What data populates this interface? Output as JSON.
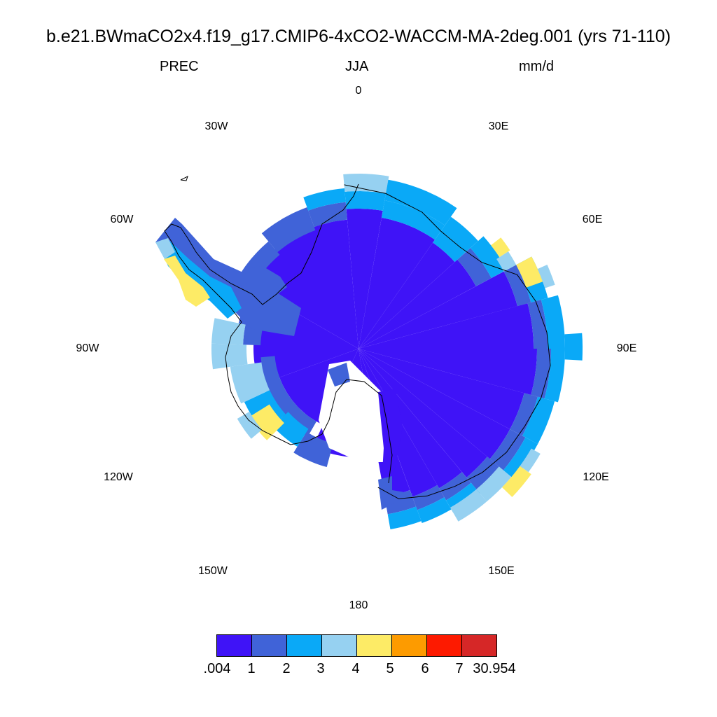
{
  "title": "b.e21.BWmaCO2x4.f19_g17.CMIP6-4xCO2-WACCM-MA-2deg.001 (yrs 71-110)",
  "subtitle": {
    "left": "PREC",
    "center": "JJA",
    "right": "mm/d"
  },
  "map": {
    "projection": "south polar stereographic",
    "background_color": "#ffffff",
    "coastline_color": "#000000",
    "longitude_labels": {
      "0": "0",
      "30E": "30E",
      "60E": "60E",
      "90E": "90E",
      "120E": "120E",
      "150E": "150E",
      "180": "180",
      "150W": "150W",
      "120W": "120W",
      "90W": "90W",
      "60W": "60W",
      "30W": "30W"
    }
  },
  "colorbar": {
    "colors": [
      "#3f13f7",
      "#4063d8",
      "#0aa9f7",
      "#96d1f1",
      "#fdeb66",
      "#fd9b00",
      "#fd1a00",
      "#d62727"
    ],
    "labels": [
      ".004",
      "1",
      "2",
      "3",
      "4",
      "5",
      "6",
      "7",
      "30.954"
    ]
  }
}
